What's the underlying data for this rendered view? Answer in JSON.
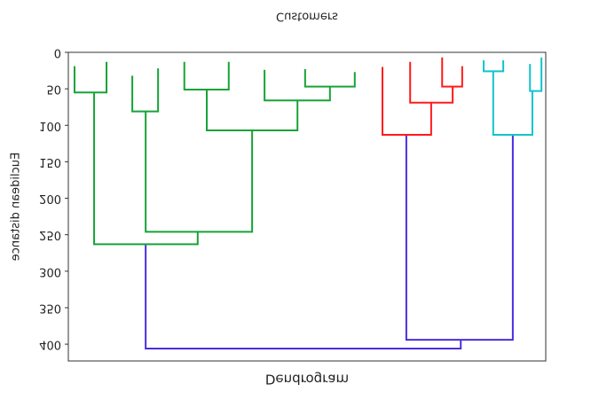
{
  "chart_data": {
    "type": "dendrogram",
    "title": "Dendrogram",
    "xlabel": "Customers",
    "ylabel": "Euclidean distance",
    "ylim": [
      0,
      423
    ],
    "yticks": [
      0,
      50,
      100,
      150,
      200,
      250,
      300,
      350,
      400
    ],
    "xlim": [
      0,
      100
    ],
    "inverted": true,
    "links": [
      {
        "x": [
          16.2,
          16.2,
          82.2,
          82.2
        ],
        "y": [
          263,
          406,
          406,
          394
        ],
        "color": "#4a2de0"
      },
      {
        "x": [
          70.8,
          70.8,
          93.1,
          93.1
        ],
        "y": [
          113,
          394,
          394,
          113
        ],
        "color": "#4a2de0"
      },
      {
        "x": [
          5.4,
          5.4,
          27.1,
          27.1
        ],
        "y": [
          55,
          263,
          263,
          246
        ],
        "color": "#17a336"
      },
      {
        "x": [
          16.2,
          16.2,
          38.5,
          38.5
        ],
        "y": [
          81,
          246,
          246,
          107
        ],
        "color": "#17a336"
      },
      {
        "x": [
          29.0,
          29.0,
          48.0,
          48.0
        ],
        "y": [
          51,
          107,
          107,
          66
        ],
        "color": "#17a336"
      },
      {
        "x": [
          1.3,
          1.3,
          8.0,
          8.0
        ],
        "y": [
          19,
          55,
          55,
          13
        ],
        "color": "#17a336"
      },
      {
        "x": [
          13.4,
          13.4,
          18.8,
          18.8
        ],
        "y": [
          32,
          81,
          81,
          22
        ],
        "color": "#17a336"
      },
      {
        "x": [
          24.3,
          24.3,
          33.6,
          33.6
        ],
        "y": [
          13,
          51,
          51,
          13
        ],
        "color": "#17a336"
      },
      {
        "x": [
          41.1,
          41.1,
          54.8,
          54.8
        ],
        "y": [
          24,
          66,
          66,
          47
        ],
        "color": "#17a336"
      },
      {
        "x": [
          49.6,
          49.6,
          60.0,
          60.0
        ],
        "y": [
          23,
          47,
          47,
          27
        ],
        "color": "#17a336"
      },
      {
        "x": [
          65.8,
          65.8,
          76.0,
          76.0
        ],
        "y": [
          20,
          113,
          113,
          69
        ],
        "color": "#ff1a1a"
      },
      {
        "x": [
          71.6,
          71.6,
          80.5,
          80.5
        ],
        "y": [
          13,
          69,
          69,
          47
        ],
        "color": "#ff1a1a"
      },
      {
        "x": [
          78.3,
          78.3,
          82.5,
          82.5
        ],
        "y": [
          7,
          47,
          47,
          19
        ],
        "color": "#ff1a1a"
      },
      {
        "x": [
          89.0,
          89.0,
          97.2,
          97.2
        ],
        "y": [
          26,
          113,
          113,
          53
        ],
        "color": "#11c4cc"
      },
      {
        "x": [
          87.0,
          87.0,
          91.1,
          91.1
        ],
        "y": [
          11,
          26,
          26,
          11
        ],
        "color": "#11c4cc"
      },
      {
        "x": [
          96.7,
          96.7,
          99.1,
          99.1
        ],
        "y": [
          16,
          53,
          53,
          7
        ],
        "color": "#11c4cc"
      }
    ]
  }
}
